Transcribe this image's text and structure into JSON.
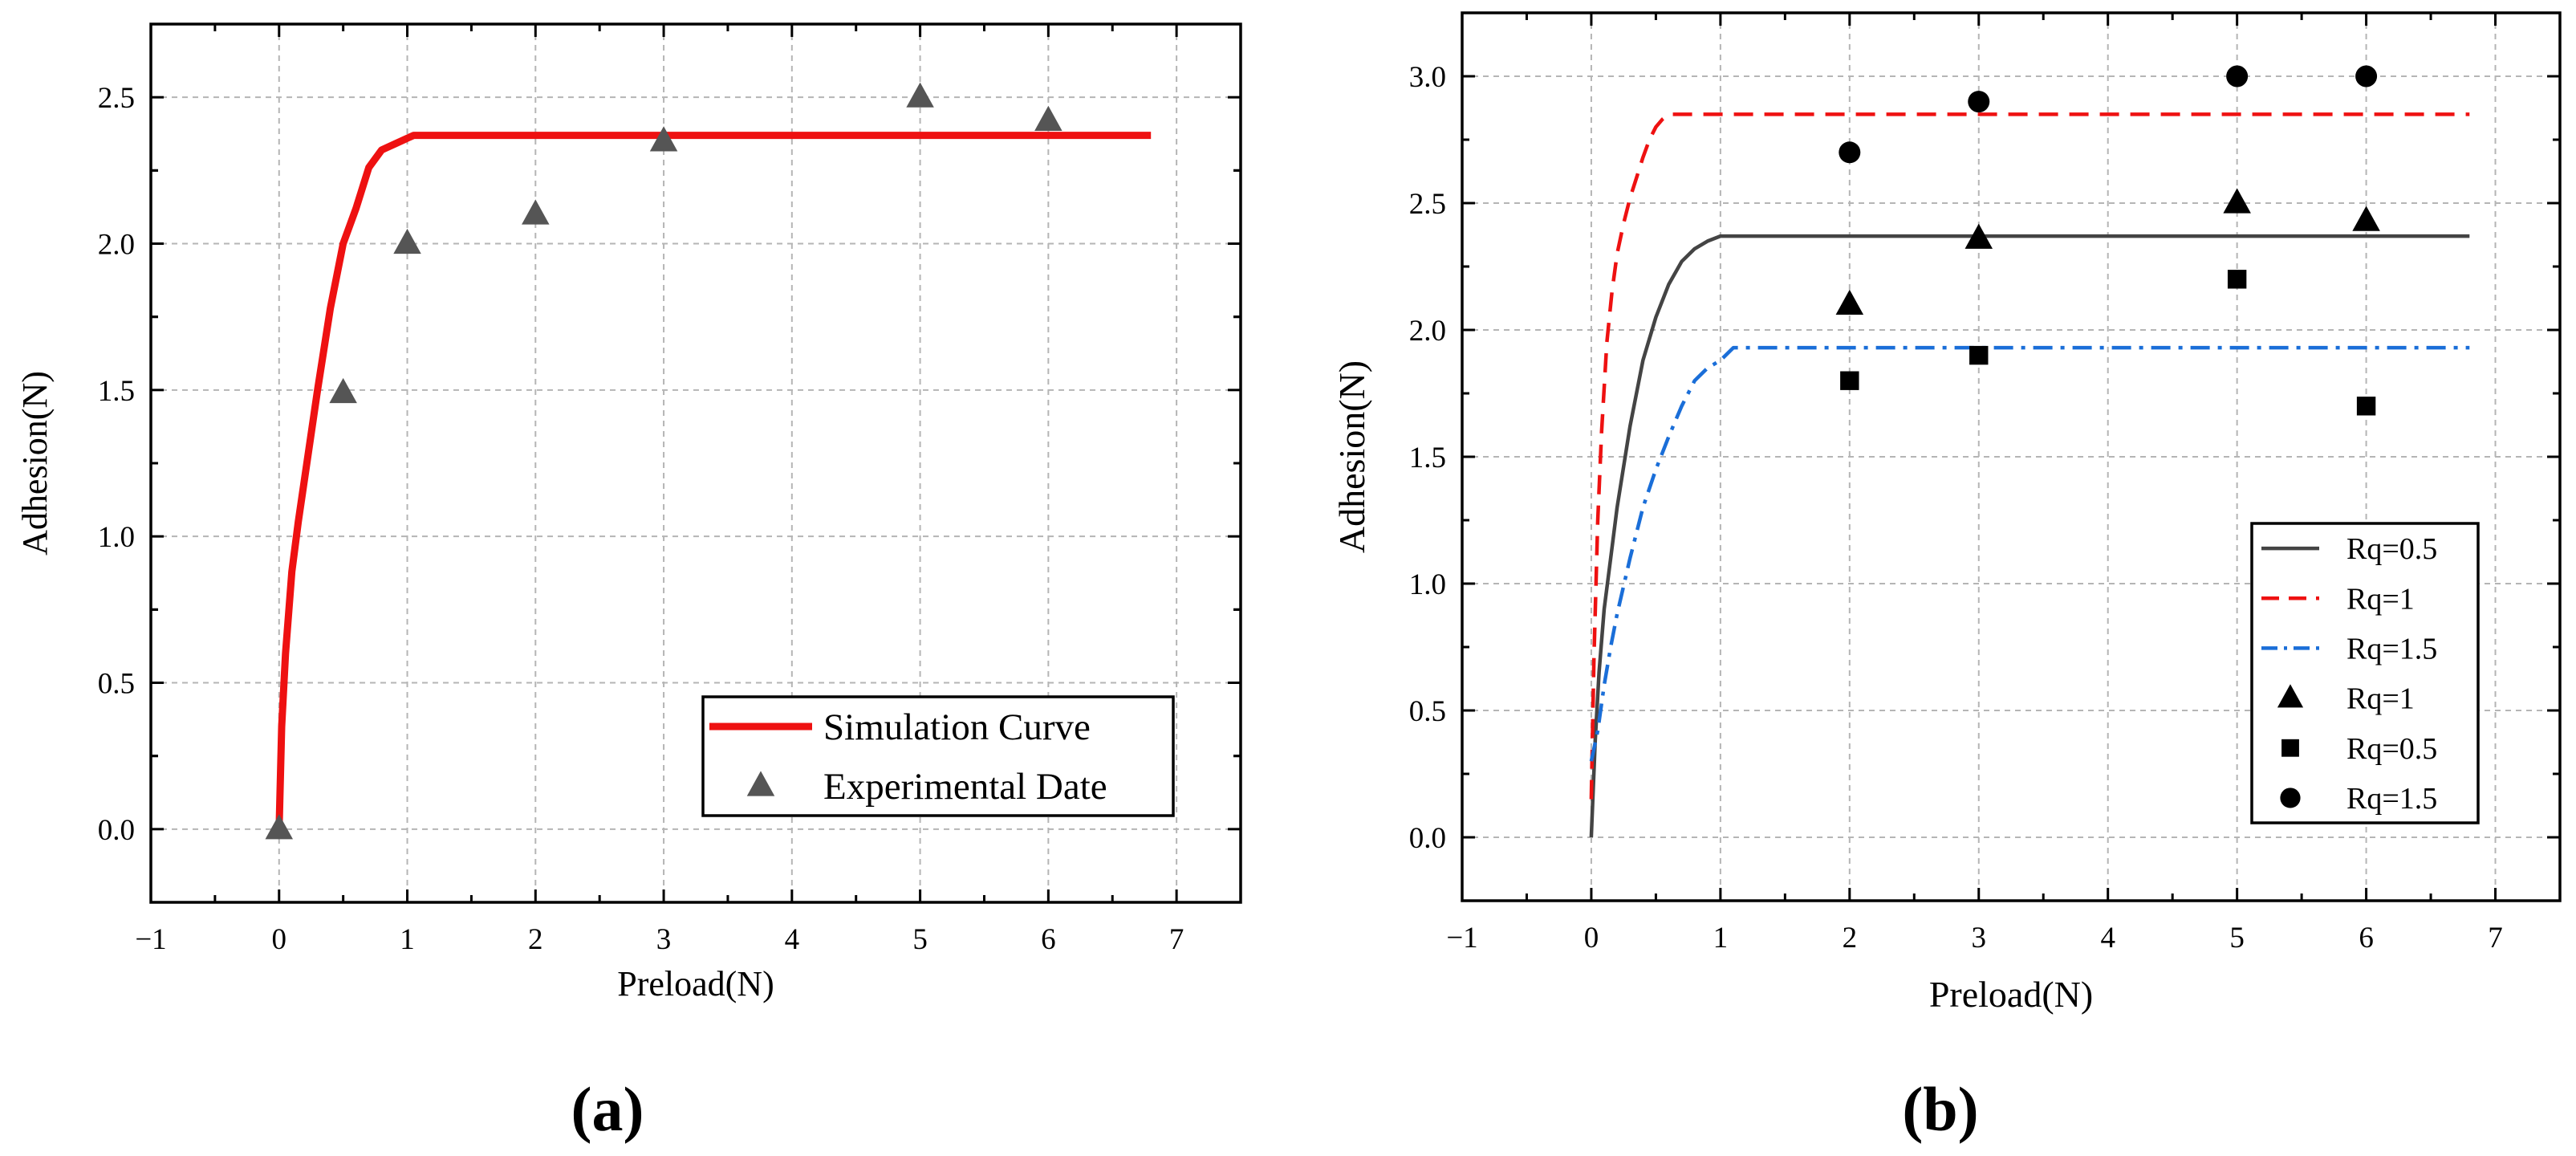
{
  "chart_data": [
    {
      "panel": "a",
      "panel_label": "(a)",
      "type": "line",
      "xlabel": "Preload(N)",
      "ylabel": "Adhesion(N)",
      "xlim": [
        -1,
        7.5
      ],
      "ylim": [
        -0.25,
        2.75
      ],
      "xticks": [
        -1,
        0,
        1,
        2,
        3,
        4,
        5,
        6,
        7
      ],
      "xtick_labels": [
        "−1",
        "0",
        "1",
        "2",
        "3",
        "4",
        "5",
        "6",
        "7"
      ],
      "yticks": [
        0,
        0.5,
        1,
        1.5,
        2,
        2.5
      ],
      "ytick_labels": [
        "0.0",
        "0.5",
        "1.0",
        "1.5",
        "2.0",
        "2.5"
      ],
      "grid": true,
      "legend_position": "bottom-right",
      "series": [
        {
          "name": "Simulation Curve",
          "kind": "line",
          "style": "solid",
          "color": "#ee1111",
          "x": [
            0,
            0.02,
            0.05,
            0.1,
            0.15,
            0.2,
            0.3,
            0.4,
            0.5,
            0.6,
            0.7,
            0.8,
            0.9,
            1.0,
            1.05,
            1.2,
            2,
            3,
            4,
            5,
            6,
            6.8
          ],
          "y": [
            0,
            0.35,
            0.6,
            0.88,
            1.05,
            1.2,
            1.5,
            1.78,
            2.0,
            2.12,
            2.26,
            2.32,
            2.34,
            2.36,
            2.37,
            2.37,
            2.37,
            2.37,
            2.37,
            2.37,
            2.37,
            2.37
          ]
        },
        {
          "name": "Experimental Date",
          "kind": "scatter",
          "marker": "triangle",
          "color": "#555555",
          "x": [
            0,
            0.5,
            1,
            2,
            3,
            5,
            6
          ],
          "y": [
            0,
            1.49,
            2.0,
            2.1,
            2.35,
            2.5,
            2.42
          ]
        }
      ]
    },
    {
      "panel": "b",
      "panel_label": "(b)",
      "type": "line",
      "xlabel": "Preload(N)",
      "ylabel": "Adhesion(N)",
      "xlim": [
        -1,
        7.5
      ],
      "ylim": [
        -0.25,
        3.25
      ],
      "xticks": [
        -1,
        0,
        1,
        2,
        3,
        4,
        5,
        6,
        7
      ],
      "xtick_labels": [
        "−1",
        "0",
        "1",
        "2",
        "3",
        "4",
        "5",
        "6",
        "7"
      ],
      "yticks": [
        0,
        0.5,
        1,
        1.5,
        2,
        2.5,
        3
      ],
      "ytick_labels": [
        "0.0",
        "0.5",
        "1.0",
        "1.5",
        "2.0",
        "2.5",
        "3.0"
      ],
      "grid": true,
      "legend_position": "bottom-right",
      "series": [
        {
          "name": "Rq=0.5",
          "kind": "line",
          "style": "solid",
          "color": "#444444",
          "x": [
            0,
            0.03,
            0.06,
            0.1,
            0.15,
            0.2,
            0.3,
            0.4,
            0.5,
            0.6,
            0.7,
            0.8,
            0.9,
            1.0,
            1.05,
            1.2,
            2,
            3,
            4,
            5,
            6,
            6.8
          ],
          "y": [
            0,
            0.38,
            0.65,
            0.9,
            1.1,
            1.3,
            1.62,
            1.88,
            2.05,
            2.18,
            2.27,
            2.32,
            2.35,
            2.37,
            2.37,
            2.37,
            2.37,
            2.37,
            2.37,
            2.37,
            2.37,
            2.37
          ]
        },
        {
          "name": "Rq=1",
          "kind": "line",
          "style": "dashed",
          "color": "#ee1111",
          "x": [
            0,
            0.02,
            0.05,
            0.08,
            0.12,
            0.16,
            0.2,
            0.25,
            0.3,
            0.35,
            0.4,
            0.45,
            0.5,
            0.55,
            0.6,
            0.65,
            1,
            2,
            3,
            4,
            5,
            6,
            6.8
          ],
          "y": [
            0.15,
            0.7,
            1.25,
            1.6,
            1.95,
            2.15,
            2.3,
            2.42,
            2.52,
            2.6,
            2.68,
            2.75,
            2.8,
            2.83,
            2.85,
            2.85,
            2.85,
            2.85,
            2.85,
            2.85,
            2.85,
            2.85,
            2.85
          ]
        },
        {
          "name": "Rq=1.5",
          "kind": "line",
          "style": "dashdot",
          "color": "#1a6ed8",
          "x": [
            0,
            0.05,
            0.1,
            0.15,
            0.2,
            0.3,
            0.4,
            0.5,
            0.6,
            0.7,
            0.8,
            0.9,
            1.0,
            1.1,
            1.2,
            2,
            3,
            4,
            5,
            6,
            6.8
          ],
          "y": [
            0.3,
            0.42,
            0.6,
            0.75,
            0.88,
            1.1,
            1.3,
            1.45,
            1.58,
            1.7,
            1.8,
            1.85,
            1.88,
            1.93,
            1.93,
            1.93,
            1.93,
            1.93,
            1.93,
            1.93,
            1.93
          ]
        },
        {
          "name": "Rq=1",
          "kind": "scatter",
          "marker": "triangle",
          "color": "#000000",
          "x": [
            2,
            3,
            5,
            6
          ],
          "y": [
            2.1,
            2.36,
            2.5,
            2.43
          ]
        },
        {
          "name": "Rq=0.5",
          "kind": "scatter",
          "marker": "square",
          "color": "#000000",
          "x": [
            2,
            3,
            5,
            6
          ],
          "y": [
            1.8,
            1.9,
            2.2,
            1.7
          ]
        },
        {
          "name": "Rq=1.5",
          "kind": "scatter",
          "marker": "circle",
          "color": "#000000",
          "x": [
            2,
            3,
            5,
            6
          ],
          "y": [
            2.7,
            2.9,
            3.0,
            3.0
          ]
        }
      ]
    }
  ]
}
